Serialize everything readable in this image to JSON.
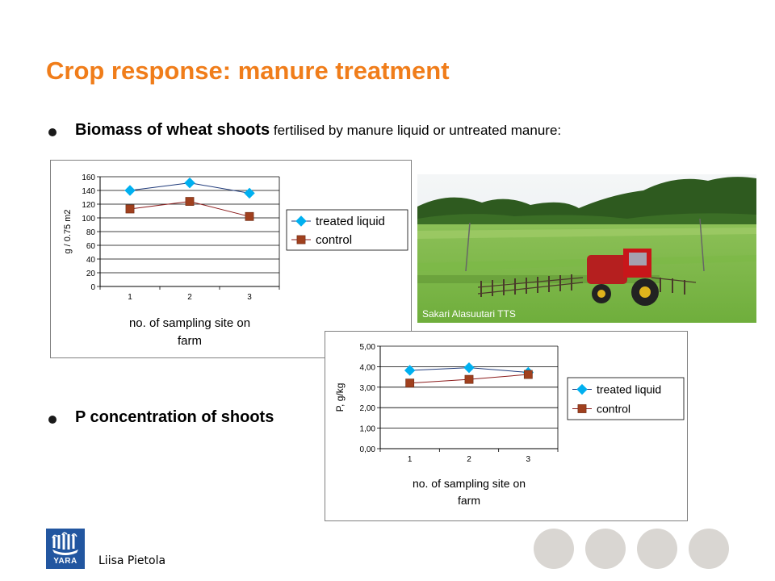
{
  "slide": {
    "title": "Crop response: manure treatment",
    "bullet1_strong": "Biomass of wheat shoots",
    "bullet1_rest": " fertilised by manure liquid or untreated manure:",
    "bullet2_strong": "P concentration of shoots",
    "photo_credit": "Sakari Alasuutari TTS",
    "logo_text": "YARA",
    "author": "Liisa Pietola"
  },
  "chart_data": [
    {
      "type": "line",
      "x": [
        1,
        2,
        3
      ],
      "series": [
        {
          "name": "treated liquid",
          "values": [
            140,
            151,
            136
          ],
          "color": "#00b0f0",
          "marker": "diamond"
        },
        {
          "name": "control",
          "values": [
            113,
            124,
            102
          ],
          "color": "#a0401e",
          "marker": "square"
        }
      ],
      "ylim": [
        0,
        160
      ],
      "yticks": [
        "0",
        "20",
        "40",
        "60",
        "80",
        "100",
        "120",
        "140",
        "160"
      ],
      "xticks": [
        "1",
        "2",
        "3"
      ],
      "ylabel": "g / 0.75 m2",
      "xlabel_line1": "no. of sampling site on",
      "xlabel_line2": "farm",
      "grid": true,
      "legend": "right"
    },
    {
      "type": "line",
      "x": [
        1,
        2,
        3
      ],
      "series": [
        {
          "name": "treated liquid",
          "values": [
            3.82,
            3.95,
            3.72
          ],
          "color": "#00b0f0",
          "marker": "diamond"
        },
        {
          "name": "control",
          "values": [
            3.2,
            3.38,
            3.62
          ],
          "color": "#a0401e",
          "marker": "square"
        }
      ],
      "ylim": [
        0,
        5
      ],
      "yticks": [
        "0,00",
        "1,00",
        "2,00",
        "3,00",
        "4,00",
        "5,00"
      ],
      "xticks": [
        "1",
        "2",
        "3"
      ],
      "ylabel": "P, g/kg",
      "xlabel_line1": "no. of sampling site on",
      "xlabel_line2": "farm",
      "grid": true,
      "legend": "right"
    }
  ]
}
